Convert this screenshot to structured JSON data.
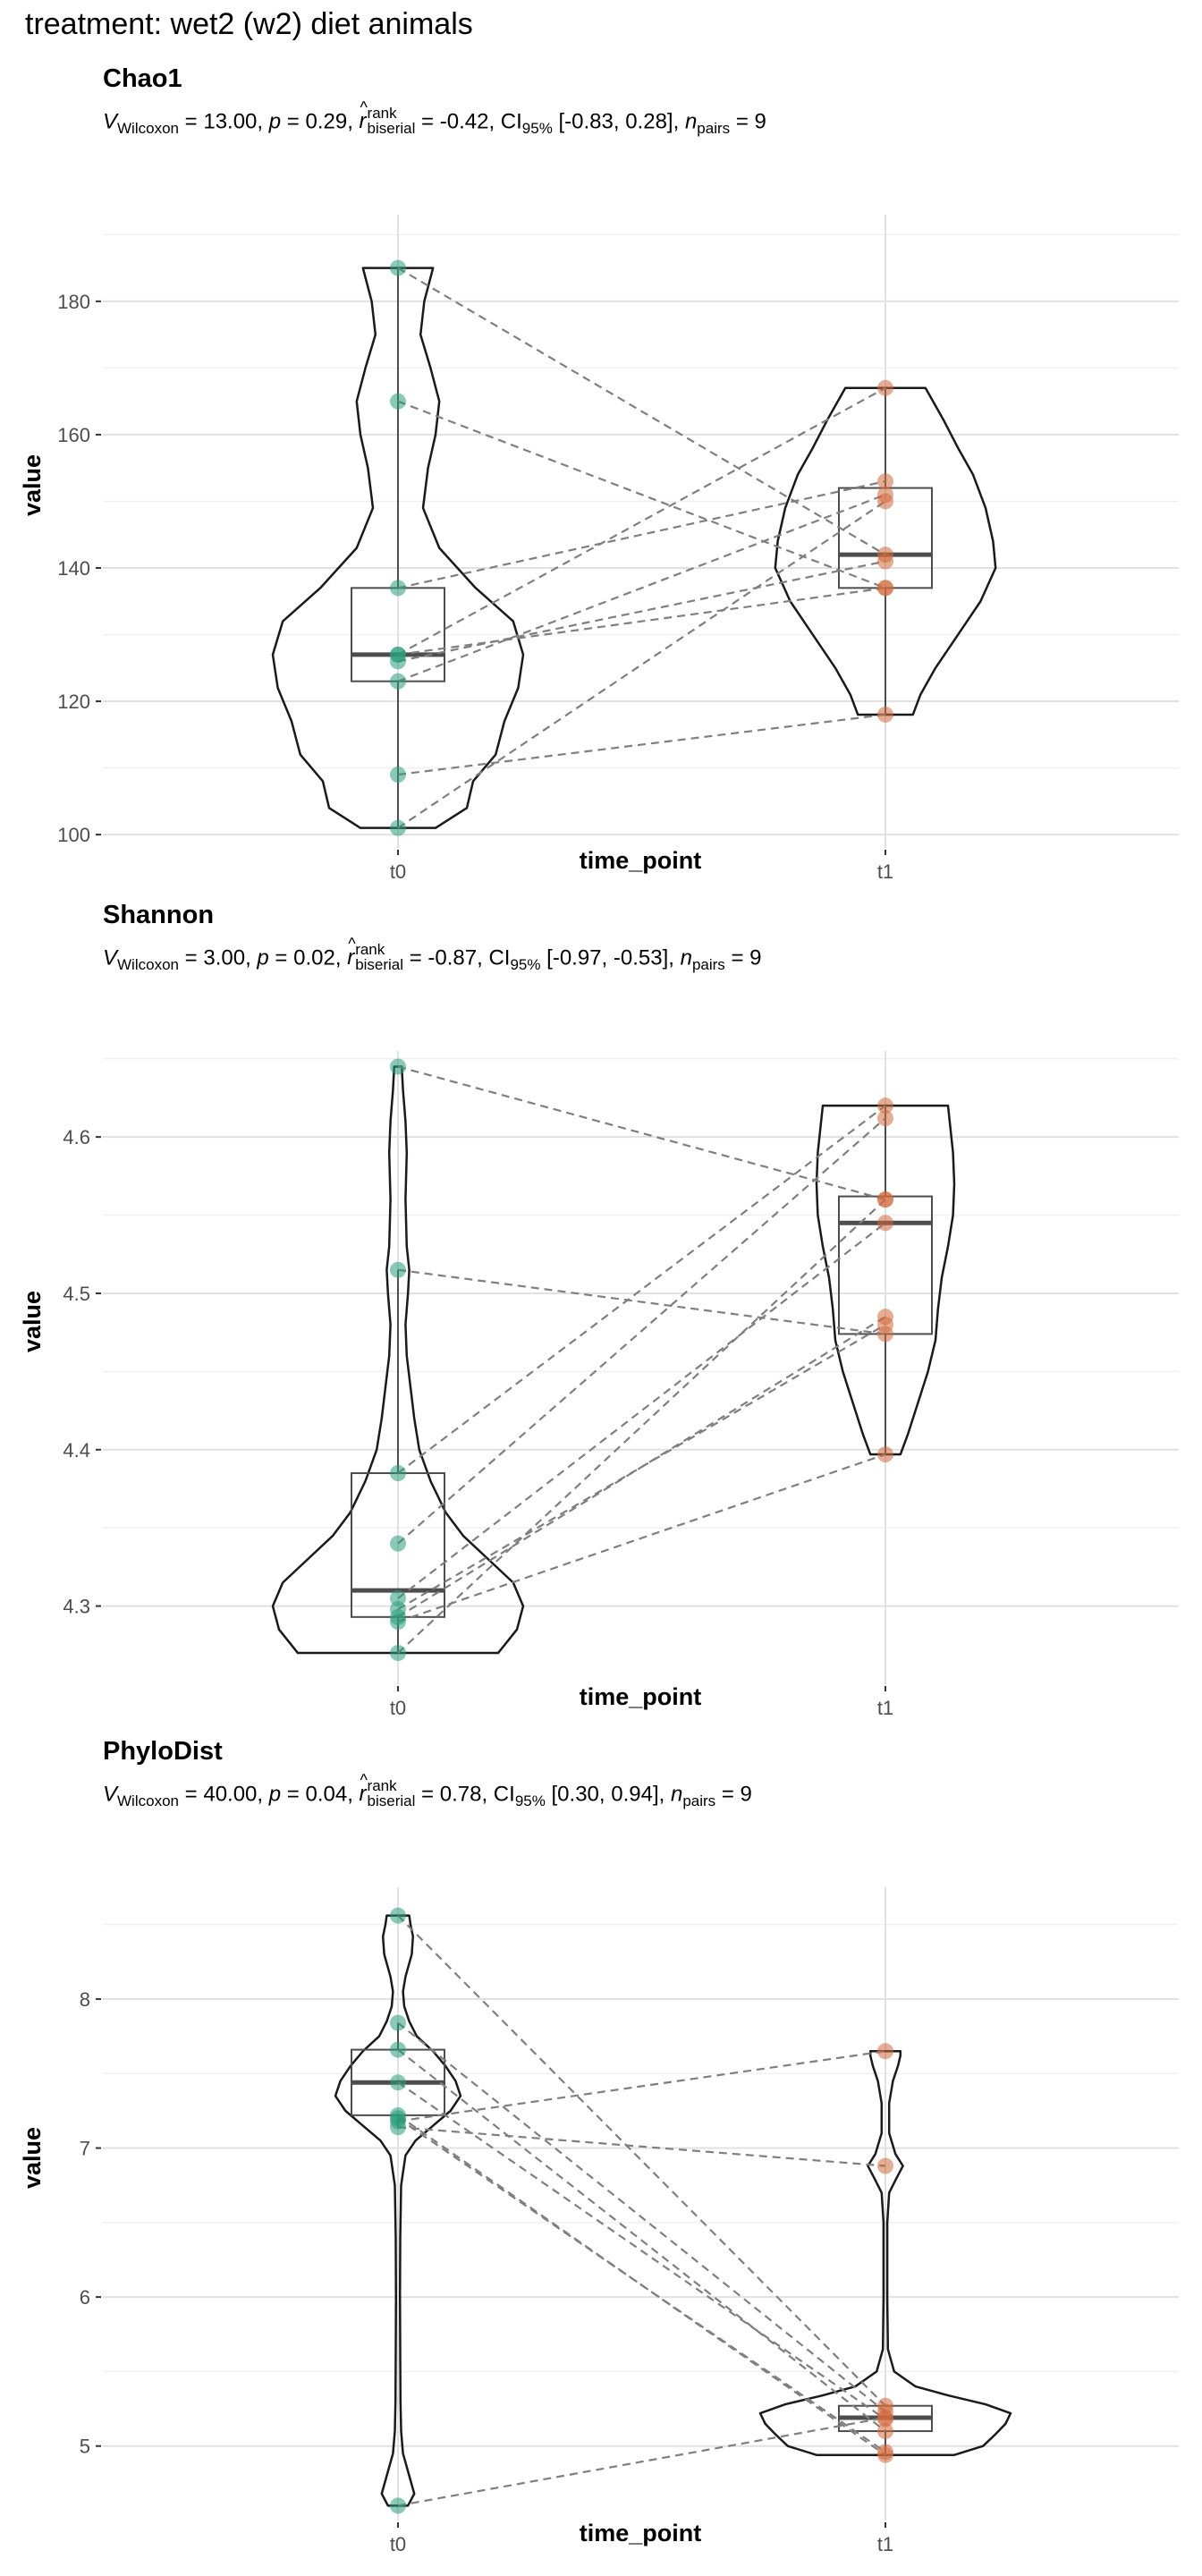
{
  "page": {
    "title": "treatment: wet2 (w2) diet animals"
  },
  "colors": {
    "t0": "#2a9d78",
    "t1": "#d26a3e",
    "grid_major": "#e1e1e1",
    "grid_minor": "#f0f0f0",
    "line": "#1a1a1a",
    "connector": "#7f7f7f",
    "box_median": "#4d4d4d"
  },
  "chart_data": [
    {
      "type": "violin-box-paired",
      "title": "Chao1",
      "stats": {
        "V_value": "13.00",
        "p_value": "0.29",
        "r_value": "-0.42",
        "ci_value": "[-0.83, 0.28]",
        "n_value": "9"
      },
      "xlabel": "time_point",
      "ylabel": "value",
      "categories": [
        "t0",
        "t1"
      ],
      "ylim": [
        98,
        193
      ],
      "yticks": [
        100,
        120,
        140,
        160,
        180
      ],
      "tick_labels": [
        "100",
        "120",
        "140",
        "160",
        "180"
      ],
      "series": [
        {
          "name": "t0",
          "values": [
            185,
            165,
            137,
            127,
            126,
            123,
            109,
            101,
            127
          ]
        },
        {
          "name": "t1",
          "values": [
            142,
            137,
            153,
            167,
            141,
            151,
            118,
            150,
            137
          ]
        }
      ],
      "box": [
        {
          "q1": 123,
          "median": 127,
          "q3": 137,
          "whisker_low": 101,
          "whisker_high": 185
        },
        {
          "q1": 137,
          "median": 142,
          "q3": 152,
          "whisker_low": 118,
          "whisker_high": 167
        }
      ],
      "violin_width": [
        [
          [
            101,
            0.3
          ],
          [
            104,
            0.55
          ],
          [
            108,
            0.6
          ],
          [
            112,
            0.78
          ],
          [
            117,
            0.85
          ],
          [
            122,
            0.96
          ],
          [
            127,
            1.0
          ],
          [
            132,
            0.92
          ],
          [
            137,
            0.62
          ],
          [
            143,
            0.33
          ],
          [
            149,
            0.2
          ],
          [
            155,
            0.24
          ],
          [
            160,
            0.3
          ],
          [
            165,
            0.33
          ],
          [
            170,
            0.26
          ],
          [
            175,
            0.18
          ],
          [
            180,
            0.21
          ],
          [
            185,
            0.28
          ]
        ],
        [
          [
            118,
            0.22
          ],
          [
            121,
            0.28
          ],
          [
            125,
            0.4
          ],
          [
            130,
            0.58
          ],
          [
            135,
            0.76
          ],
          [
            140,
            0.88
          ],
          [
            144,
            0.86
          ],
          [
            149,
            0.8
          ],
          [
            154,
            0.7
          ],
          [
            158,
            0.58
          ],
          [
            162,
            0.47
          ],
          [
            165,
            0.38
          ],
          [
            167,
            0.32
          ]
        ]
      ]
    },
    {
      "type": "violin-box-paired",
      "title": "Shannon",
      "stats": {
        "V_value": "3.00",
        "p_value": "0.02",
        "r_value": "-0.87",
        "ci_value": "[-0.97, -0.53]",
        "n_value": "9"
      },
      "xlabel": "time_point",
      "ylabel": "value",
      "categories": [
        "t0",
        "t1"
      ],
      "ylim": [
        4.25,
        4.655
      ],
      "yticks": [
        4.3,
        4.4,
        4.5,
        4.6
      ],
      "tick_labels": [
        "4.3",
        "4.4",
        "4.5",
        "4.6"
      ],
      "series": [
        {
          "name": "t0",
          "values": [
            4.645,
            4.515,
            4.385,
            4.34,
            4.305,
            4.298,
            4.293,
            4.29,
            4.27
          ]
        },
        {
          "name": "t1",
          "values": [
            4.56,
            4.474,
            4.62,
            4.612,
            4.545,
            4.48,
            4.485,
            4.397,
            4.56
          ]
        }
      ],
      "box": [
        {
          "q1": 4.293,
          "median": 4.31,
          "q3": 4.385,
          "whisker_low": 4.27,
          "whisker_high": 4.515
        },
        {
          "q1": 4.474,
          "median": 4.545,
          "q3": 4.562,
          "whisker_low": 4.397,
          "whisker_high": 4.62
        }
      ],
      "violin_width": [
        [
          [
            4.27,
            0.8
          ],
          [
            4.285,
            0.95
          ],
          [
            4.3,
            1.0
          ],
          [
            4.315,
            0.92
          ],
          [
            4.33,
            0.72
          ],
          [
            4.345,
            0.52
          ],
          [
            4.36,
            0.38
          ],
          [
            4.38,
            0.26
          ],
          [
            4.4,
            0.17
          ],
          [
            4.42,
            0.13
          ],
          [
            4.44,
            0.1
          ],
          [
            4.46,
            0.07
          ],
          [
            4.48,
            0.06
          ],
          [
            4.5,
            0.08
          ],
          [
            4.515,
            0.09
          ],
          [
            4.53,
            0.07
          ],
          [
            4.56,
            0.06
          ],
          [
            4.59,
            0.07
          ],
          [
            4.61,
            0.06
          ],
          [
            4.63,
            0.04
          ],
          [
            4.645,
            0.03
          ]
        ],
        [
          [
            4.397,
            0.12
          ],
          [
            4.41,
            0.18
          ],
          [
            4.43,
            0.26
          ],
          [
            4.45,
            0.34
          ],
          [
            4.47,
            0.4
          ],
          [
            4.49,
            0.42
          ],
          [
            4.51,
            0.45
          ],
          [
            4.53,
            0.5
          ],
          [
            4.55,
            0.54
          ],
          [
            4.57,
            0.55
          ],
          [
            4.59,
            0.54
          ],
          [
            4.605,
            0.52
          ],
          [
            4.62,
            0.5
          ]
        ]
      ]
    },
    {
      "type": "violin-box-paired",
      "title": "PhyloDist",
      "stats": {
        "V_value": "40.00",
        "p_value": "0.04",
        "r_value": "0.78",
        "ci_value": "[0.30, 0.94]",
        "n_value": "9"
      },
      "xlabel": "time_point",
      "ylabel": "value",
      "categories": [
        "t0",
        "t1"
      ],
      "ylim": [
        4.5,
        8.75
      ],
      "yticks": [
        5,
        6,
        7,
        8
      ],
      "tick_labels": [
        "5",
        "6",
        "7",
        "8"
      ],
      "series": [
        {
          "name": "t0",
          "values": [
            8.56,
            7.84,
            7.66,
            7.44,
            7.22,
            7.18,
            7.14,
            7.2,
            4.6
          ]
        },
        {
          "name": "t1",
          "values": [
            5.27,
            5.23,
            5.1,
            5.18,
            4.94,
            7.65,
            6.88,
            4.96,
            5.19
          ]
        }
      ],
      "box": [
        {
          "q1": 7.22,
          "median": 7.44,
          "q3": 7.66,
          "whisker_low": 7.14,
          "whisker_high": 7.84
        },
        {
          "q1": 5.1,
          "median": 5.19,
          "q3": 5.27,
          "whisker_low": 4.94,
          "whisker_high": 5.27
        }
      ],
      "violin_width": [
        [
          [
            4.6,
            0.08
          ],
          [
            4.68,
            0.13
          ],
          [
            4.8,
            0.09
          ],
          [
            4.95,
            0.04
          ],
          [
            5.1,
            0.025
          ],
          [
            5.3,
            0.02
          ],
          [
            5.6,
            0.018
          ],
          [
            6.0,
            0.016
          ],
          [
            6.4,
            0.018
          ],
          [
            6.75,
            0.025
          ],
          [
            6.95,
            0.06
          ],
          [
            7.05,
            0.14
          ],
          [
            7.15,
            0.28
          ],
          [
            7.25,
            0.42
          ],
          [
            7.35,
            0.5
          ],
          [
            7.45,
            0.46
          ],
          [
            7.55,
            0.38
          ],
          [
            7.65,
            0.28
          ],
          [
            7.75,
            0.15
          ],
          [
            7.85,
            0.09
          ],
          [
            7.95,
            0.05
          ],
          [
            8.05,
            0.04
          ],
          [
            8.15,
            0.06
          ],
          [
            8.3,
            0.11
          ],
          [
            8.42,
            0.12
          ],
          [
            8.5,
            0.1
          ],
          [
            8.56,
            0.09
          ]
        ],
        [
          [
            4.94,
            0.55
          ],
          [
            5.0,
            0.78
          ],
          [
            5.08,
            0.88
          ],
          [
            5.15,
            0.96
          ],
          [
            5.22,
            1.0
          ],
          [
            5.28,
            0.8
          ],
          [
            5.34,
            0.5
          ],
          [
            5.4,
            0.24
          ],
          [
            5.5,
            0.07
          ],
          [
            5.65,
            0.02
          ],
          [
            6.0,
            0.015
          ],
          [
            6.5,
            0.015
          ],
          [
            6.7,
            0.03
          ],
          [
            6.8,
            0.09
          ],
          [
            6.88,
            0.14
          ],
          [
            6.96,
            0.08
          ],
          [
            7.1,
            0.03
          ],
          [
            7.3,
            0.03
          ],
          [
            7.45,
            0.06
          ],
          [
            7.55,
            0.1
          ],
          [
            7.62,
            0.12
          ],
          [
            7.65,
            0.12
          ]
        ]
      ]
    }
  ]
}
